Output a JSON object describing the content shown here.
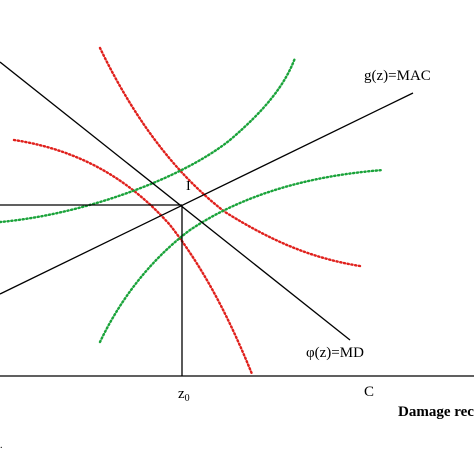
{
  "labels": {
    "mac_curve": "g(z)=MAC",
    "md_curve": "φ(z)=MD",
    "intersection": "I",
    "z0": "z",
    "z0_sub": "0",
    "c_point": "C",
    "x_axis_title": "Damage rec"
  },
  "colors": {
    "axes": "#000000",
    "solid_lines": "#000000",
    "red_dotted": "#e0201c",
    "green_dotted": "#1aa33a",
    "background": "#ffffff"
  }
}
